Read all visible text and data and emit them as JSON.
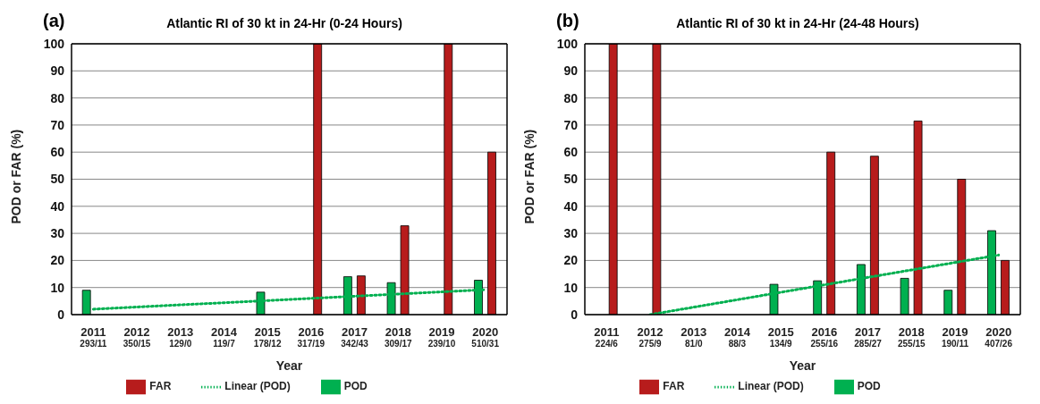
{
  "chart_data": [
    {
      "type": "bar",
      "title": "Atlantic RI of 30 kt in 24-Hr (0-24 Hours)",
      "annotations": [
        "(a)"
      ],
      "xlabel": "Year",
      "ylabel": "POD or FAR (%)",
      "categories": [
        "2011\n293/11",
        "2012\n350/15",
        "2013\n129/0",
        "2014\n119/7",
        "2015\n178/12",
        "2016\n317/19",
        "2017\n342/43",
        "2018\n309/17",
        "2019\n239/10",
        "2020\n510/31"
      ],
      "series": [
        {
          "name": "POD",
          "color": "#00b050",
          "values": [
            9,
            0,
            0,
            0,
            8.3,
            0,
            14,
            11.8,
            0,
            12.7
          ]
        },
        {
          "name": "FAR",
          "color": "#b71c1c",
          "values": [
            0,
            0,
            0,
            0,
            0,
            100,
            14.3,
            32.8,
            100,
            60
          ]
        },
        {
          "name": "Linear (POD)",
          "type": "line",
          "color": "#00b050",
          "line_style": "dotted",
          "marker": "none",
          "values": [
            2.0,
            2.8,
            3.6,
            4.4,
            5.2,
            6.0,
            6.8,
            7.6,
            8.4,
            9.2
          ]
        }
      ],
      "ylim": [
        0,
        100
      ],
      "yticks": [
        0,
        10,
        20,
        30,
        40,
        50,
        60,
        70,
        80,
        90,
        100
      ],
      "grid": "y",
      "legend": "bottom"
    },
    {
      "type": "bar",
      "title": "Atlantic RI of 30 kt in 24-Hr (24-48 Hours)",
      "annotations": [
        "(b)"
      ],
      "xlabel": "Year",
      "ylabel": "POD or FAR (%)",
      "categories": [
        "2011\n224/6",
        "2012\n275/9",
        "2013\n81/0",
        "2014\n88/3",
        "2015\n134/9",
        "2016\n255/16",
        "2017\n285/27",
        "2018\n255/15",
        "2019\n190/11",
        "2020\n407/26"
      ],
      "series": [
        {
          "name": "POD",
          "color": "#00b050",
          "values": [
            0,
            0,
            0,
            0,
            11.2,
            12.5,
            18.5,
            13.4,
            9,
            31
          ]
        },
        {
          "name": "FAR",
          "color": "#b71c1c",
          "values": [
            100,
            100,
            0,
            0,
            0,
            60,
            58.5,
            71.5,
            50,
            20
          ]
        },
        {
          "name": "Linear (POD)",
          "type": "line",
          "color": "#00b050",
          "line_style": "dotted",
          "marker": "none",
          "values": [
            null,
            0,
            2.75,
            5.5,
            8.25,
            11,
            13.75,
            16.5,
            19.25,
            22
          ]
        }
      ],
      "ylim": [
        0,
        100
      ],
      "yticks": [
        0,
        10,
        20,
        30,
        40,
        50,
        60,
        70,
        80,
        90,
        100
      ],
      "grid": "y",
      "legend": "bottom"
    }
  ]
}
